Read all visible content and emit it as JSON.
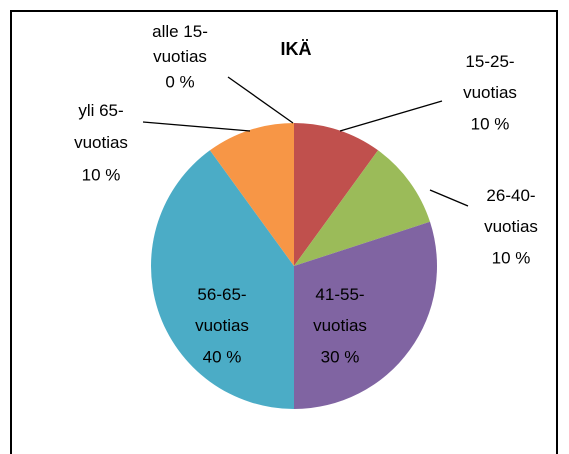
{
  "chart_data": {
    "type": "pie",
    "title": "IKÄ",
    "categories": [
      "alle 15-vuotias",
      "15-25-vuotias",
      "26-40-vuotias",
      "41-55-vuotias",
      "56-65-vuotias",
      "yli 65-vuotias"
    ],
    "values": [
      0,
      10,
      10,
      30,
      40,
      10
    ],
    "value_labels": [
      "0 %",
      "10 %",
      "10 %",
      "30 %",
      "40 %",
      "10 %"
    ],
    "colors": [
      "#4f81bd",
      "#c0504d",
      "#9bbb59",
      "#8064a2",
      "#4bacc6",
      "#f79646"
    ]
  }
}
